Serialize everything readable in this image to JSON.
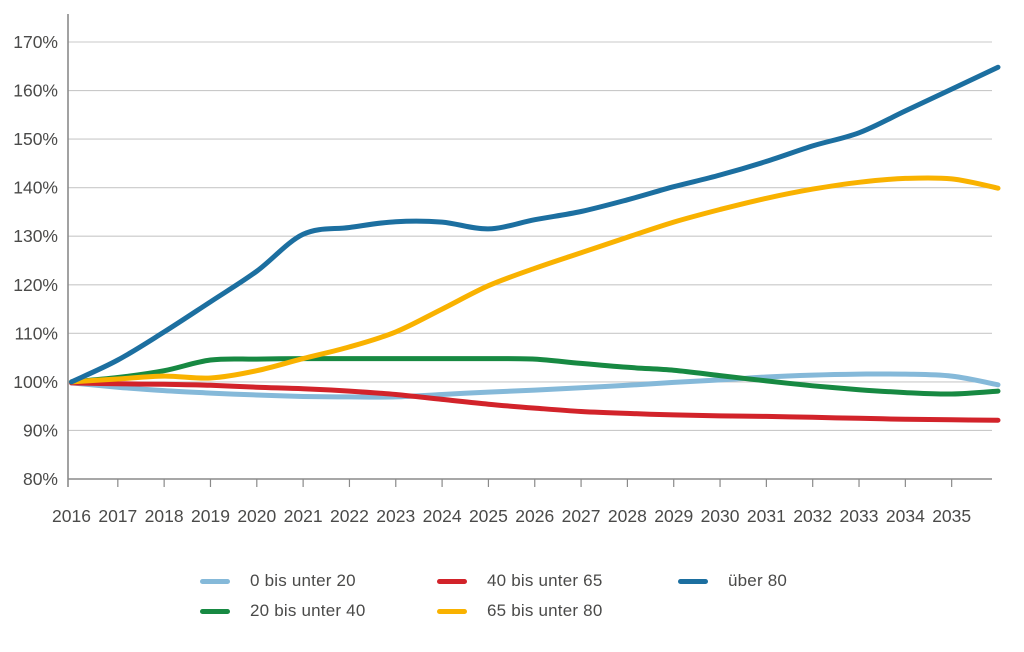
{
  "chart_data": {
    "type": "line",
    "title": "",
    "xlabel": "",
    "ylabel": "",
    "x": [
      2016,
      2017,
      2018,
      2019,
      2020,
      2021,
      2022,
      2023,
      2024,
      2025,
      2026,
      2027,
      2028,
      2029,
      2030,
      2031,
      2032,
      2033,
      2034,
      2035,
      2036
    ],
    "series": [
      {
        "name": "0 bis unter 20",
        "color": "#85b9d9",
        "values": [
          99.8,
          98.9,
          98.2,
          97.7,
          97.3,
          97.0,
          96.9,
          96.9,
          97.4,
          97.9,
          98.3,
          98.8,
          99.3,
          99.9,
          100.4,
          101.0,
          101.4,
          101.6,
          101.6,
          101.2,
          99.4
        ]
      },
      {
        "name": "20 bis unter 40",
        "color": "#178942",
        "values": [
          100.0,
          100.9,
          102.3,
          104.5,
          104.7,
          104.8,
          104.8,
          104.8,
          104.8,
          104.8,
          104.7,
          103.8,
          103.0,
          102.4,
          101.3,
          100.2,
          99.2,
          98.4,
          97.8,
          97.5,
          98.1
        ]
      },
      {
        "name": "40 bis unter 65",
        "color": "#d2232a",
        "values": [
          99.8,
          99.6,
          99.5,
          99.3,
          98.9,
          98.6,
          98.1,
          97.4,
          96.4,
          95.4,
          94.6,
          93.9,
          93.5,
          93.2,
          93.0,
          92.9,
          92.7,
          92.5,
          92.3,
          92.2,
          92.1
        ]
      },
      {
        "name": "65 bis unter 80",
        "color": "#f9b200",
        "values": [
          100.0,
          100.6,
          101.2,
          100.8,
          102.3,
          104.8,
          107.2,
          110.3,
          115.0,
          119.8,
          123.4,
          126.6,
          129.8,
          132.9,
          135.5,
          137.8,
          139.7,
          141.1,
          141.9,
          141.8,
          139.9
        ]
      },
      {
        "name": "über 80",
        "color": "#1c6fa0",
        "values": [
          100.0,
          104.5,
          110.3,
          116.5,
          122.8,
          130.4,
          131.8,
          133.0,
          132.9,
          131.5,
          133.4,
          135.1,
          137.5,
          140.2,
          142.6,
          145.4,
          148.6,
          151.3,
          155.8,
          160.3,
          164.8
        ]
      }
    ],
    "xticks": [
      2016,
      2017,
      2018,
      2019,
      2020,
      2021,
      2022,
      2023,
      2024,
      2025,
      2026,
      2027,
      2028,
      2029,
      2030,
      2031,
      2032,
      2033,
      2034,
      2035
    ],
    "yticks": [
      80,
      90,
      100,
      110,
      120,
      130,
      140,
      150,
      160,
      170
    ],
    "ytick_suffix": "%",
    "xlim": [
      2016,
      2036
    ],
    "ylim": [
      80,
      170
    ],
    "grid": "horizontal",
    "legend_position": "bottom",
    "colors": {
      "grid": "#c9c9c9",
      "axis": "#8a8a8a",
      "tick_label": "#4a4a49",
      "background": "#ffffff"
    }
  },
  "legend": {
    "order": [
      0,
      1,
      2,
      3,
      4
    ]
  }
}
